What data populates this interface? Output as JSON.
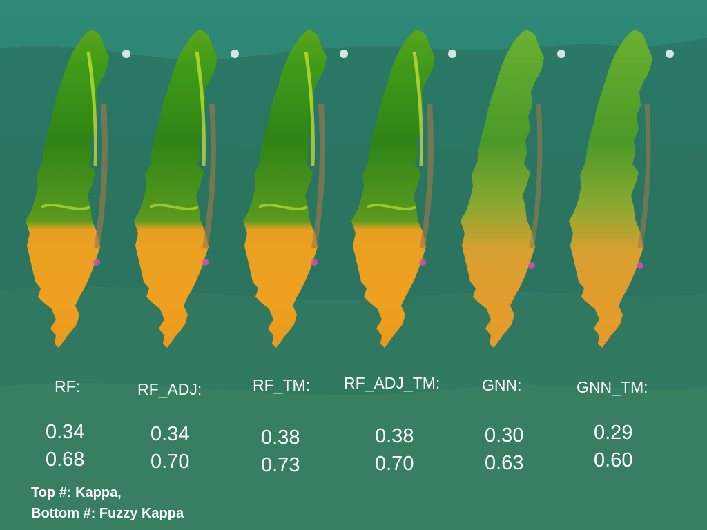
{
  "models": [
    {
      "label": "RF:",
      "kappa": "0.34",
      "fuzzy_kappa": "0.68"
    },
    {
      "label": "RF_ADJ:",
      "kappa": "0.34",
      "fuzzy_kappa": "0.70"
    },
    {
      "label": "RF_TM:",
      "kappa": "0.38",
      "fuzzy_kappa": "0.73"
    },
    {
      "label": "RF_ADJ_TM:",
      "kappa": "0.38",
      "fuzzy_kappa": "0.70"
    },
    {
      "label": "GNN:",
      "kappa": "0.30",
      "fuzzy_kappa": "0.63"
    },
    {
      "label": "GNN_TM:",
      "kappa": "0.29",
      "fuzzy_kappa": "0.60"
    }
  ],
  "legend": {
    "line1": "Top #: Kappa,",
    "line2": "Bottom #: Fuzzy Kappa"
  },
  "colors": {
    "background": "#2f8a78",
    "forest_green": "#3f9a18",
    "dark_green": "#1f6a12",
    "yellow_green": "#c9e020",
    "orange": "#f0a020",
    "dark_orange": "#c86a10",
    "brown": "#8a6a40",
    "pink": "#e050b0",
    "text": "#ffffff"
  }
}
